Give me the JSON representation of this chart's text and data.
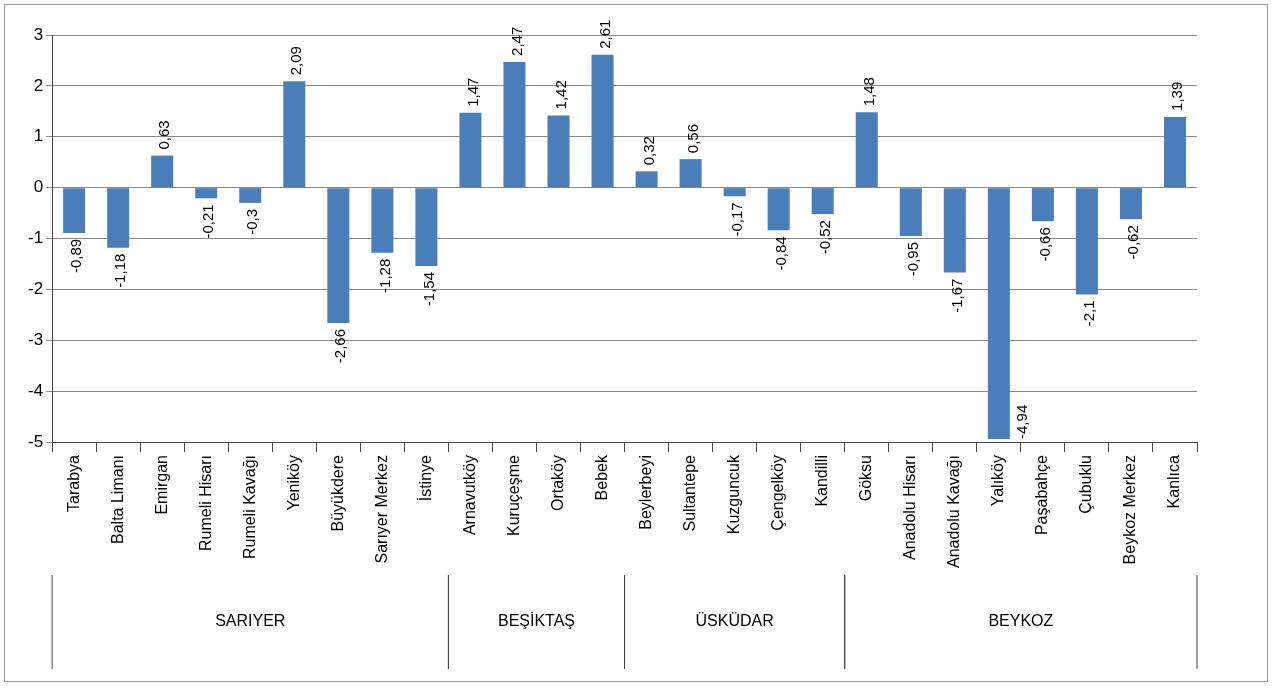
{
  "chart_data": {
    "type": "bar",
    "categories": [
      "Tarabya",
      "Balta Limanı",
      "Emirgan",
      "Rumeli Hisarı",
      "Rumeli Kavağı",
      "Yeniköy",
      "Büyükdere",
      "Sarıyer Merkez",
      "İstinye",
      "Arnavutköy",
      "Kuruçeşme",
      "Ortaköy",
      "Bebek",
      "Beylerbeyi",
      "Sultantepe",
      "Kuzguncuk",
      "Çengelköy",
      "Kandilli",
      "Göksu",
      "Anadolu Hisarı",
      "Anadolu Kavağı",
      "Yalıköy",
      "Paşabahçe",
      "Çubuklu",
      "Beykoz Merkez",
      "Kanlıca"
    ],
    "values": [
      -0.89,
      -1.18,
      0.63,
      -0.21,
      -0.3,
      2.09,
      -2.66,
      -1.28,
      -1.54,
      1.47,
      2.47,
      1.42,
      2.61,
      0.32,
      0.56,
      -0.17,
      -0.84,
      -0.52,
      1.48,
      -0.95,
      -1.67,
      -4.94,
      -0.66,
      -2.1,
      -0.62,
      1.39
    ],
    "value_labels": [
      "-0,89",
      "-1,18",
      "0,63",
      "-0,21",
      "-0,3",
      "2,09",
      "-2,66",
      "-1,28",
      "-1,54",
      "1,47",
      "2,47",
      "1,42",
      "2,61",
      "0,32",
      "0,56",
      "-0,17",
      "-0,84",
      "-0,52",
      "1,48",
      "-0,95",
      "-1,67",
      "-4,94",
      "-0,66",
      "-2,1",
      "-0,62",
      "1,39"
    ],
    "color": "#4a7ebb",
    "ylim": [
      -5,
      3
    ],
    "yticks": [
      -5,
      -4,
      -3,
      -2,
      -1,
      0,
      1,
      2,
      3
    ],
    "grid": "y",
    "legend": false,
    "annotations": [
      "SARIYER",
      "BEŞİKTAŞ",
      "ÜSKÜDAR",
      "BEYKOZ"
    ]
  }
}
